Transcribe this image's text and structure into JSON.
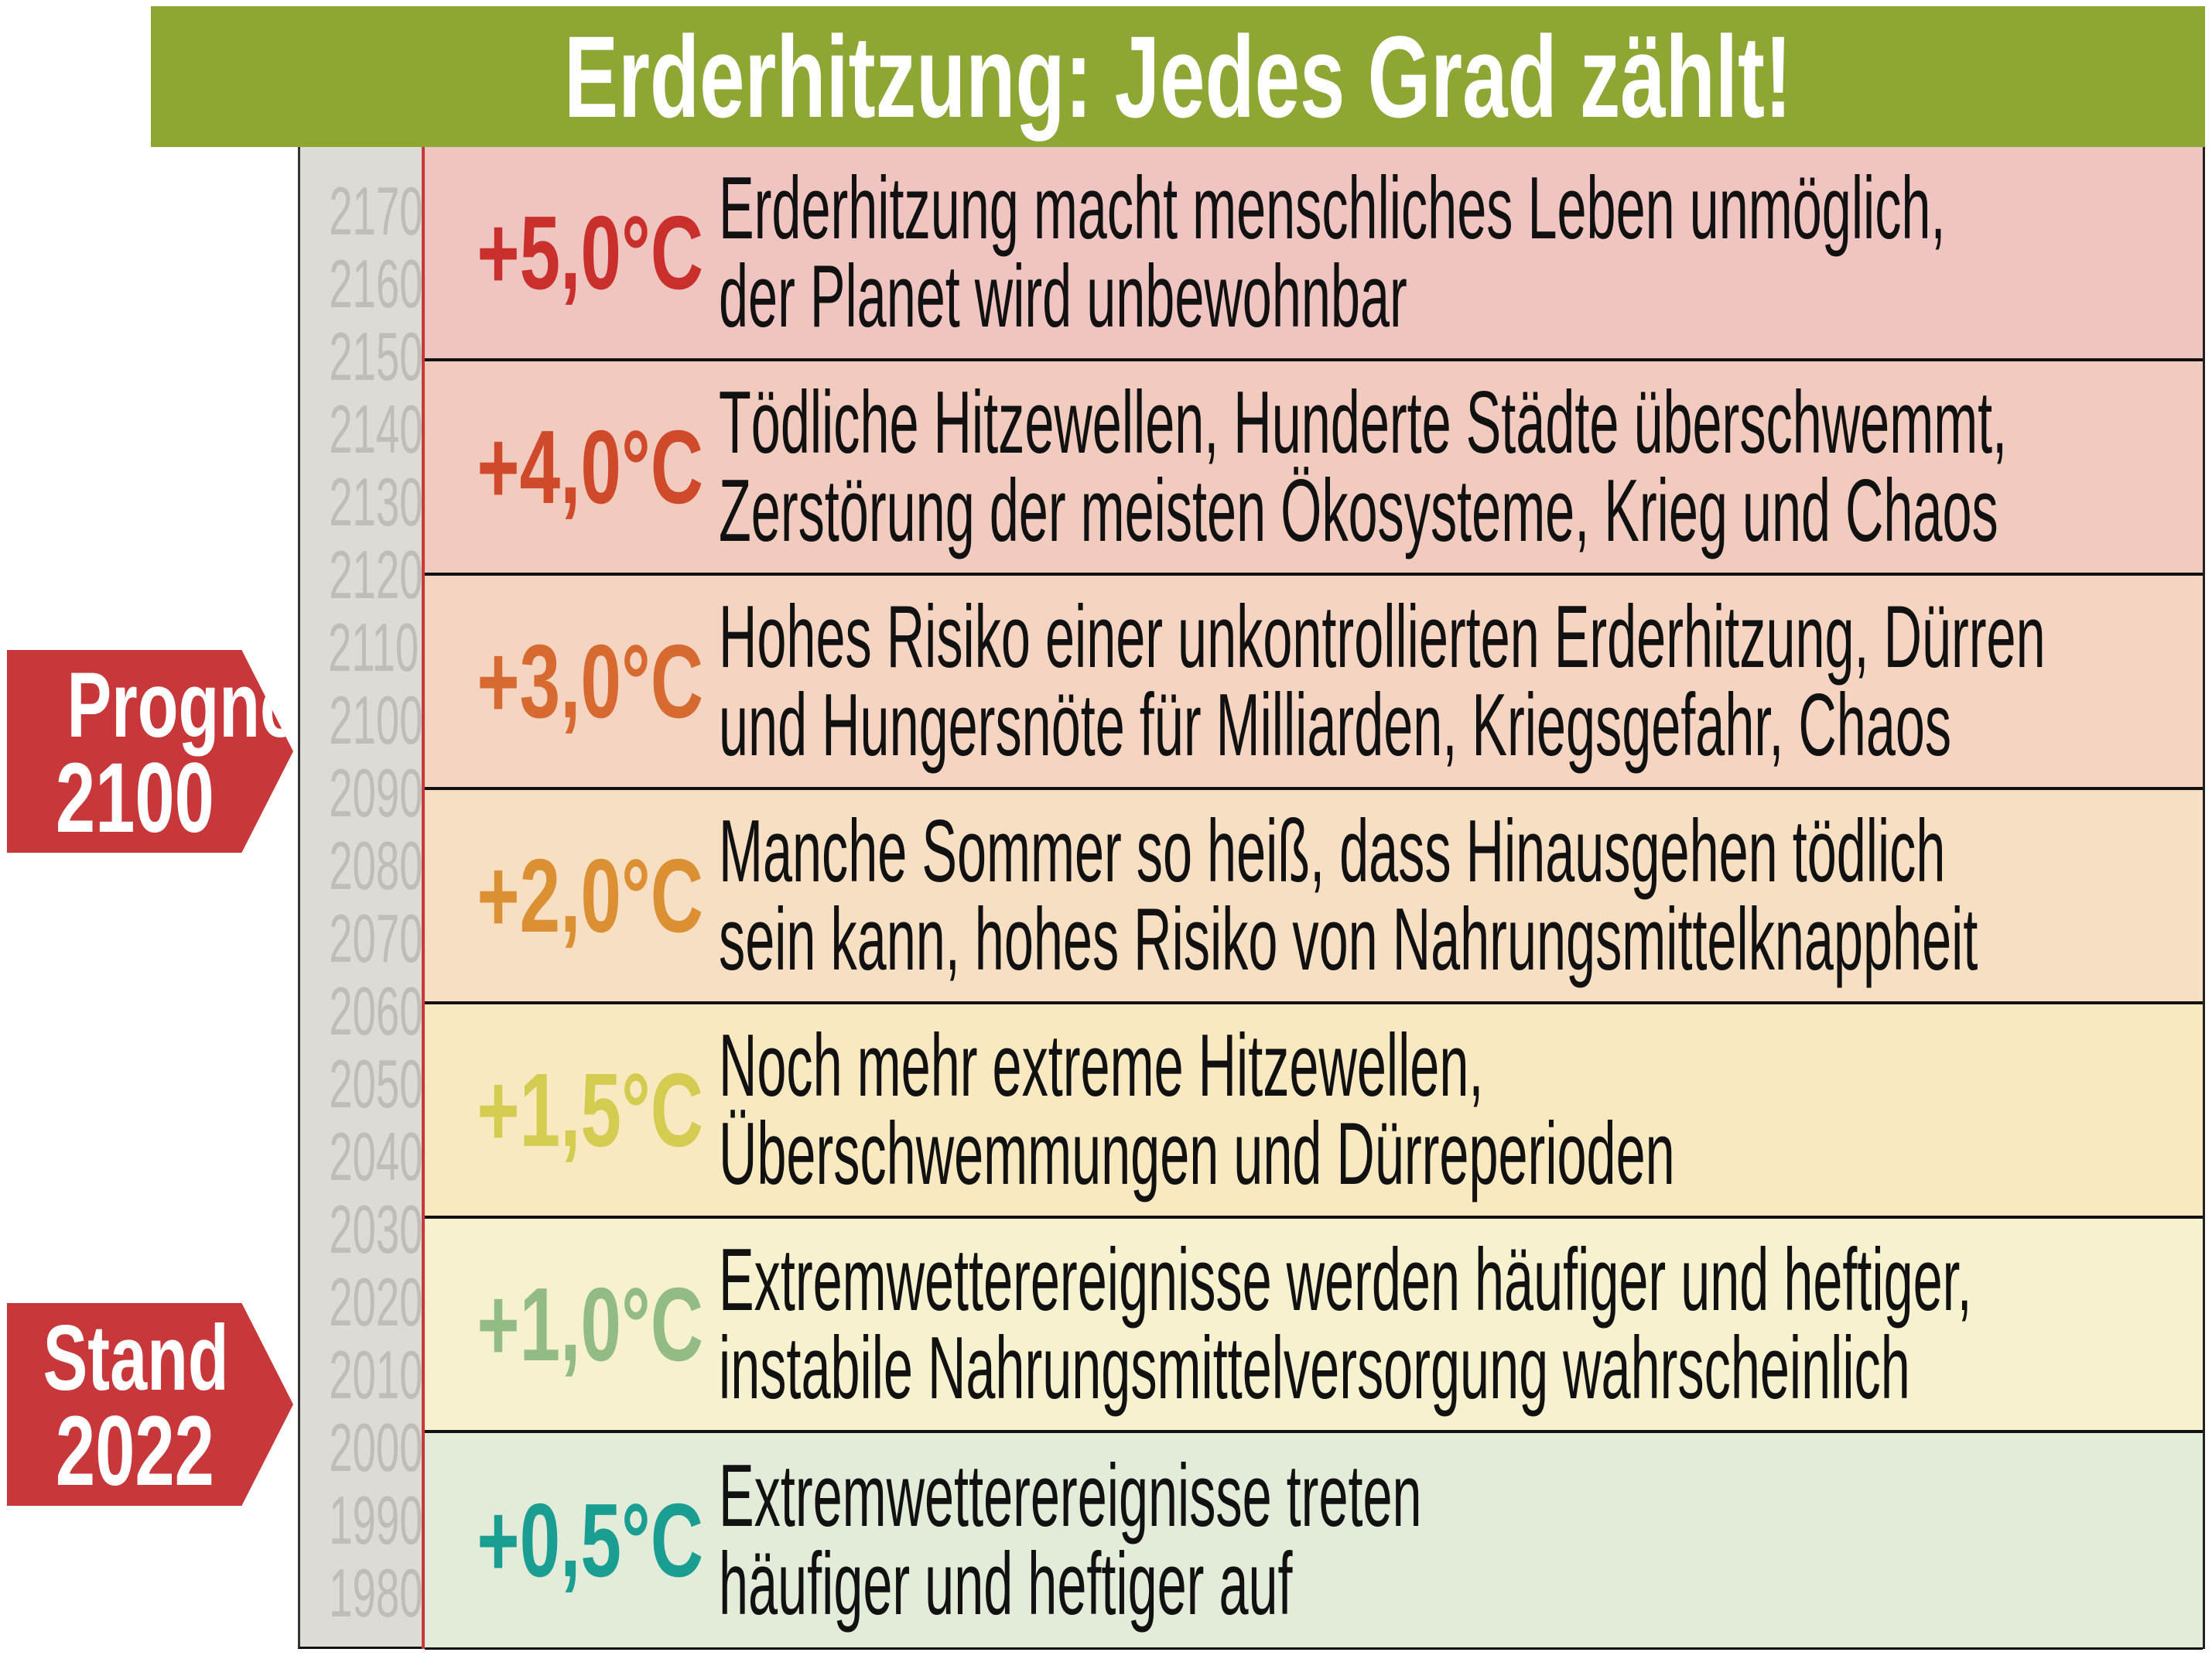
{
  "title": "Erderhitzung: Jedes Grad zählt!",
  "colors": {
    "title_bar": "#8ea734",
    "marker": "#c8373a"
  },
  "years": [
    "2170",
    "2160",
    "2150",
    "2140",
    "2130",
    "2120",
    "2110",
    "2100",
    "2090",
    "2080",
    "2070",
    "2060",
    "2050",
    "2040",
    "2030",
    "2020",
    "2010",
    "2000",
    "1990",
    "1980"
  ],
  "markers": [
    {
      "label": "Prognose",
      "year": "2100"
    },
    {
      "label": "Stand",
      "year": "2022"
    }
  ],
  "rows": [
    {
      "temp": "+5,0°C",
      "color": "#c9302c",
      "bg": "#f0c4c0",
      "lines": [
        "Erderhitzung macht menschliches Leben unmöglich,",
        "der Planet wird unbewohnbar"
      ]
    },
    {
      "temp": "+4,0°C",
      "color": "#cf4a2a",
      "bg": "#f2cbbf",
      "lines": [
        "Tödliche Hitzewellen, Hunderte Städte überschwemmt,",
        "Zerstörung der meisten Ökosysteme, Krieg und Chaos"
      ]
    },
    {
      "temp": "+3,0°C",
      "color": "#d76a31",
      "bg": "#f5d5c2",
      "lines": [
        "Hohes Risiko einer unkontrollierten Erderhitzung, Dürren",
        "und Hungersnöte für Milliarden, Kriegsgefahr, Chaos"
      ]
    },
    {
      "temp": "+2,0°C",
      "color": "#dc8f33",
      "bg": "#f6dfc3",
      "lines": [
        "Manche Sommer so heiß, dass Hinausgehen tödlich",
        "sein kann, hohes Risiko von Nahrungsmittelknappheit"
      ]
    },
    {
      "temp": "+1,5°C",
      "color": "#d3cc50",
      "bg": "#f8e9c1",
      "lines": [
        "Noch mehr extreme Hitzewellen,",
        "Überschwemmungen und Dürreperioden"
      ]
    },
    {
      "temp": "+1,0°C",
      "color": "#93bb86",
      "bg": "#f6f1cf",
      "lines": [
        "Extremwetterereignisse werden häufiger und heftiger,",
        "instabile Nahrungsmittelversorgung wahrscheinlich"
      ]
    },
    {
      "temp": "+0,5°C",
      "color": "#1a9e92",
      "bg": "#e3ecd8",
      "lines": [
        "Extremwetterereignisse treten",
        "häufiger und heftiger auf"
      ]
    }
  ]
}
